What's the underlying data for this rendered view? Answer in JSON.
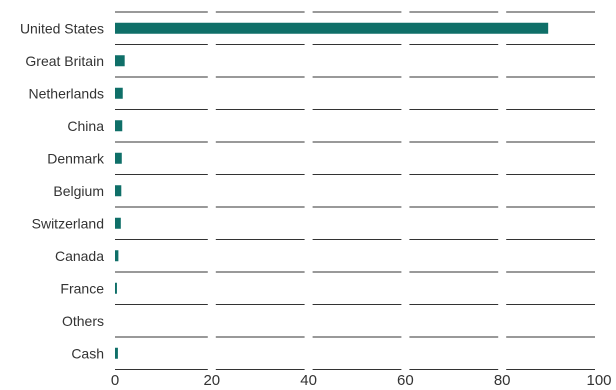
{
  "chart_data": {
    "type": "bar",
    "orientation": "horizontal",
    "categories": [
      "United States",
      "Great Britain",
      "Netherlands",
      "China",
      "Denmark",
      "Belgium",
      "Switzerland",
      "Canada",
      "France",
      "Others",
      "Cash"
    ],
    "values": [
      89.5,
      2.0,
      1.6,
      1.5,
      1.4,
      1.3,
      1.2,
      0.7,
      0.4,
      0.0,
      0.6
    ],
    "xlim": [
      0,
      100
    ],
    "xticks": [
      0,
      20,
      40,
      60,
      80,
      100
    ],
    "title": "",
    "xlabel": "",
    "ylabel": "",
    "grid": "horizontal segments between categories",
    "colors": {
      "bar": "#0f6f68",
      "grid": "#333333",
      "text": "#333333"
    }
  }
}
